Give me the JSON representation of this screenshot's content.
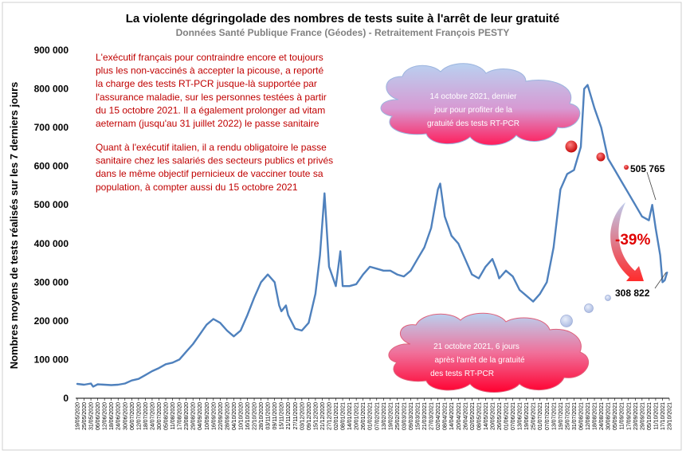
{
  "chart_data": {
    "type": "line",
    "title": "La violente dégringolade des nombres de tests suite à l'arrêt de leur gratuité",
    "subtitle": "Données Santé Publique France (Géodes) - Retraitement François PESTY",
    "ylabel": "Nombres moyens de tests réalisés sur les 7 derniers jours",
    "xlabel": "",
    "ylim": [
      0,
      900000
    ],
    "yticks": [
      "0",
      "100 000",
      "200 000",
      "300 000",
      "400 000",
      "500 000",
      "600 000",
      "700 000",
      "800 000",
      "900 000"
    ],
    "xticks": [
      "19/05/2020",
      "25/05/2020",
      "31/05/2020",
      "06/06/2020",
      "12/06/2020",
      "18/06/2020",
      "24/06/2020",
      "30/06/2020",
      "06/07/2020",
      "12/07/2020",
      "18/07/2020",
      "24/07/2020",
      "30/07/2020",
      "05/08/2020",
      "11/08/2020",
      "17/08/2020",
      "23/08/2020",
      "29/08/2020",
      "04/09/2020",
      "10/09/2020",
      "16/09/2020",
      "22/09/2020",
      "28/09/2020",
      "04/10/2020",
      "10/10/2020",
      "16/10/2020",
      "22/10/2020",
      "28/10/2020",
      "03/11/2020",
      "09/11/2020",
      "15/11/2020",
      "21/11/2020",
      "27/11/2020",
      "03/12/2020",
      "09/12/2020",
      "15/12/2020",
      "21/12/2020",
      "27/12/2020",
      "02/01/2021",
      "08/01/2021",
      "14/01/2021",
      "20/01/2021",
      "26/01/2021",
      "01/02/2021",
      "07/02/2021",
      "13/02/2021",
      "19/02/2021",
      "25/02/2021",
      "03/03/2021",
      "09/03/2021",
      "15/03/2021",
      "21/03/2021",
      "27/03/2021",
      "02/04/2021",
      "08/04/2021",
      "14/04/2021",
      "20/04/2021",
      "26/04/2021",
      "02/05/2021",
      "08/05/2021",
      "14/05/2021",
      "20/05/2021",
      "26/05/2021",
      "01/06/2021",
      "07/06/2021",
      "13/06/2021",
      "19/06/2021",
      "25/06/2021",
      "01/07/2021",
      "07/07/2021",
      "13/07/2021",
      "19/07/2021",
      "25/07/2021",
      "31/07/2021",
      "06/08/2021",
      "12/08/2021",
      "18/08/2021",
      "24/08/2021",
      "30/08/2021",
      "05/09/2021",
      "11/09/2021",
      "17/09/2021",
      "23/09/2021",
      "29/09/2021",
      "05/10/2021",
      "11/10/2021",
      "17/10/2021",
      "23/10/2021"
    ],
    "series": [
      {
        "name": "",
        "color": "#4f81bd",
        "points": [
          [
            "2020-05-19",
            37000
          ],
          [
            "2020-05-25",
            35000
          ],
          [
            "2020-05-31",
            38000
          ],
          [
            "2020-06-02",
            30000
          ],
          [
            "2020-06-06",
            36000
          ],
          [
            "2020-06-12",
            35000
          ],
          [
            "2020-06-18",
            34000
          ],
          [
            "2020-06-24",
            35000
          ],
          [
            "2020-06-30",
            38000
          ],
          [
            "2020-07-06",
            46000
          ],
          [
            "2020-07-12",
            50000
          ],
          [
            "2020-07-18",
            60000
          ],
          [
            "2020-07-24",
            70000
          ],
          [
            "2020-07-30",
            78000
          ],
          [
            "2020-08-05",
            88000
          ],
          [
            "2020-08-11",
            92000
          ],
          [
            "2020-08-17",
            100000
          ],
          [
            "2020-08-23",
            120000
          ],
          [
            "2020-08-29",
            140000
          ],
          [
            "2020-09-04",
            165000
          ],
          [
            "2020-09-10",
            190000
          ],
          [
            "2020-09-16",
            205000
          ],
          [
            "2020-09-22",
            195000
          ],
          [
            "2020-09-28",
            175000
          ],
          [
            "2020-10-04",
            160000
          ],
          [
            "2020-10-10",
            175000
          ],
          [
            "2020-10-16",
            215000
          ],
          [
            "2020-10-22",
            260000
          ],
          [
            "2020-10-28",
            300000
          ],
          [
            "2020-11-03",
            320000
          ],
          [
            "2020-11-09",
            300000
          ],
          [
            "2020-11-13",
            240000
          ],
          [
            "2020-11-15",
            225000
          ],
          [
            "2020-11-19",
            240000
          ],
          [
            "2020-11-21",
            215000
          ],
          [
            "2020-11-27",
            180000
          ],
          [
            "2020-12-03",
            175000
          ],
          [
            "2020-12-09",
            195000
          ],
          [
            "2020-12-15",
            270000
          ],
          [
            "2020-12-19",
            370000
          ],
          [
            "2020-12-23",
            530000
          ],
          [
            "2020-12-27",
            340000
          ],
          [
            "2021-01-02",
            290000
          ],
          [
            "2021-01-06",
            380000
          ],
          [
            "2021-01-08",
            290000
          ],
          [
            "2021-01-14",
            290000
          ],
          [
            "2021-01-20",
            295000
          ],
          [
            "2021-01-26",
            320000
          ],
          [
            "2021-02-01",
            340000
          ],
          [
            "2021-02-07",
            335000
          ],
          [
            "2021-02-13",
            330000
          ],
          [
            "2021-02-19",
            330000
          ],
          [
            "2021-02-25",
            320000
          ],
          [
            "2021-03-03",
            315000
          ],
          [
            "2021-03-09",
            330000
          ],
          [
            "2021-03-15",
            360000
          ],
          [
            "2021-03-21",
            390000
          ],
          [
            "2021-03-27",
            440000
          ],
          [
            "2021-04-02",
            540000
          ],
          [
            "2021-04-04",
            555000
          ],
          [
            "2021-04-08",
            470000
          ],
          [
            "2021-04-14",
            420000
          ],
          [
            "2021-04-20",
            400000
          ],
          [
            "2021-04-26",
            360000
          ],
          [
            "2021-05-02",
            320000
          ],
          [
            "2021-05-08",
            310000
          ],
          [
            "2021-05-14",
            340000
          ],
          [
            "2021-05-20",
            360000
          ],
          [
            "2021-05-24",
            330000
          ],
          [
            "2021-05-26",
            310000
          ],
          [
            "2021-06-01",
            330000
          ],
          [
            "2021-06-07",
            315000
          ],
          [
            "2021-06-13",
            280000
          ],
          [
            "2021-06-19",
            265000
          ],
          [
            "2021-06-25",
            250000
          ],
          [
            "2021-07-01",
            270000
          ],
          [
            "2021-07-07",
            300000
          ],
          [
            "2021-07-13",
            390000
          ],
          [
            "2021-07-19",
            540000
          ],
          [
            "2021-07-25",
            580000
          ],
          [
            "2021-07-31",
            590000
          ],
          [
            "2021-08-06",
            650000
          ],
          [
            "2021-08-09",
            800000
          ],
          [
            "2021-08-12",
            810000
          ],
          [
            "2021-08-18",
            750000
          ],
          [
            "2021-08-24",
            700000
          ],
          [
            "2021-08-30",
            620000
          ],
          [
            "2021-09-05",
            590000
          ],
          [
            "2021-09-11",
            560000
          ],
          [
            "2021-09-17",
            530000
          ],
          [
            "2021-09-23",
            500000
          ],
          [
            "2021-09-29",
            470000
          ],
          [
            "2021-10-05",
            460000
          ],
          [
            "2021-10-08",
            500000
          ],
          [
            "2021-10-11",
            440000
          ],
          [
            "2021-10-15",
            370000
          ],
          [
            "2021-10-17",
            300000
          ],
          [
            "2021-10-19",
            305000
          ],
          [
            "2021-10-21",
            325000
          ]
        ]
      }
    ],
    "annotations": {
      "left_text_1": [
        "L'exécutif français pour contraindre encore et toujours",
        "plus les non-vaccinés à accepter la picouse, a reporté",
        "la charge des tests RT-PCR jusque-là supportée par",
        "l'assurance maladie, sur les personnes testées à partir",
        "du 15 octobre 2021. Il a également prolonger ad vitam",
        "aeternam (jusqu'au 31 juillet 2022) le passe sanitaire"
      ],
      "left_text_2": [
        "Quant à l'exécutif italien, il a rendu obligatoire le passe",
        "sanitaire chez les salariés des secteurs publics et privés",
        "dans le même objectif pernicieux de vacciner toute sa",
        "population, à compter aussi du 15 octobre 2021"
      ],
      "cloud_top": [
        "14 octobre 2021, dernier",
        "jour pour profiter de la",
        "gratuité des tests RT-PCR"
      ],
      "cloud_bottom": [
        "21 octobre 2021, 6 jours",
        "après l'arrêt de la gratuité",
        "des tests RT-PCR"
      ],
      "label_high": "505 765",
      "label_low": "308 822",
      "pct_change": "-39%"
    },
    "colors": {
      "line": "#4f81bd",
      "annotation_text": "#c00000",
      "cloud_fill_top": "#b9d1f0",
      "cloud_fill_bottom": "#ff0030",
      "pct_text": "#e00000"
    }
  }
}
